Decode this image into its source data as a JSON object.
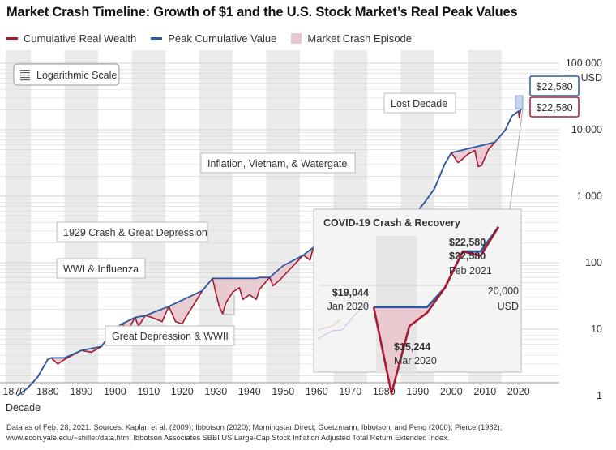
{
  "title": "Market Crash Timeline: Growth of $1 and the U.S. Stock Market’s Real Peak Values",
  "legend": {
    "cumulative": "Cumulative Real Wealth",
    "peak": "Peak Cumulative Value",
    "crash": "Market Crash Episode"
  },
  "colors": {
    "cumulative": "#a6192e",
    "peak": "#2c5aa0",
    "crash_fill": "#e8c8cf",
    "band": "#ebebeb",
    "grid": "#d4d4d4"
  },
  "scale_button": "Logarithmic Scale",
  "footnote": [
    "Data as of Feb. 28, 2021. Sources: Kaplan et al. (2009); Ibbotson (2020); Morningstar Direct; Goetzmann, Ibbotson, and Peng (2000); Pierce (1982);",
    "www.econ.yale.edu/~shiller/data.htm, Ibbotson Associates SBBI US Large-Cap Stock Inflation Adjusted Total Return Extended Index."
  ],
  "chart_data": {
    "type": "line",
    "title": "Market Crash Timeline: Growth of $1 and the U.S. Stock Market’s Real Peak Values",
    "xlabel": "Decade",
    "ylabel": "",
    "y_scale": "log",
    "xlim": [
      1870,
      2021
    ],
    "ylim": [
      0.8,
      100000
    ],
    "x_ticks": [
      "1870",
      "1880",
      "1890",
      "1900",
      "1910",
      "1920",
      "1930",
      "1940",
      "1950",
      "1960",
      "1970",
      "1980",
      "1990",
      "2000",
      "2010",
      "2020"
    ],
    "y_ticks": [
      {
        "value": 100000,
        "label": "100,000",
        "unit": "USD"
      },
      {
        "value": 10000,
        "label": "10,000"
      },
      {
        "value": 1000,
        "label": "1,000"
      },
      {
        "value": 100,
        "label": "100"
      },
      {
        "value": 10,
        "label": "10"
      },
      {
        "value": 1,
        "label": "1"
      }
    ],
    "grid": true,
    "legend_position": "top-left",
    "series": [
      {
        "name": "Cumulative Real Wealth",
        "x": [
          1871,
          1874,
          1877,
          1880,
          1881,
          1883,
          1885,
          1890,
          1893,
          1896,
          1899,
          1902,
          1904,
          1906,
          1907,
          1909,
          1911,
          1914,
          1916,
          1917,
          1918,
          1920,
          1921,
          1924,
          1926,
          1929,
          1930,
          1931,
          1932,
          1933,
          1935,
          1937,
          1938,
          1940,
          1942,
          1943,
          1946,
          1947,
          1949,
          1953,
          1956,
          1958,
          1959,
          1961,
          1962,
          1964,
          1966,
          1968,
          1970,
          1972,
          1974,
          1975,
          1977,
          1980,
          1982,
          1983,
          1985,
          1987,
          1988,
          1990,
          1992,
          1995,
          1998,
          2000,
          2002,
          2003,
          2005,
          2007,
          2008,
          2009,
          2011,
          2013,
          2016,
          2018,
          2020.0,
          2020.2,
          2020.5,
          2020.8,
          2021.1
        ],
        "y": [
          1,
          1.3,
          1.9,
          3.5,
          3.7,
          3.0,
          3.5,
          4.8,
          4.5,
          5.5,
          9,
          12,
          10,
          15,
          11,
          16,
          15,
          13,
          22,
          17,
          13,
          12,
          15,
          26,
          38,
          58,
          35,
          22,
          17,
          25,
          36,
          42,
          28,
          33,
          28,
          40,
          60,
          45,
          55,
          90,
          130,
          110,
          170,
          220,
          190,
          250,
          230,
          270,
          220,
          300,
          180,
          200,
          230,
          230,
          240,
          330,
          400,
          520,
          560,
          600,
          800,
          1300,
          3000,
          4500,
          3200,
          3500,
          4300,
          4900,
          2800,
          2900,
          5000,
          6500,
          9800,
          16000,
          19044,
          15244,
          18500,
          21500,
          22580
        ]
      },
      {
        "name": "Peak Cumulative Value",
        "x": [
          1871,
          1874,
          1877,
          1880,
          1881,
          1885,
          1890,
          1896,
          1899,
          1902,
          1906,
          1909,
          1916,
          1926,
          1929,
          1936,
          1942,
          1943,
          1946,
          1950,
          1956,
          1959,
          1961,
          1964,
          1966,
          1968,
          1985,
          1987,
          1990,
          1992,
          1995,
          1998,
          2000,
          2013,
          2016,
          2018,
          2020.0,
          2020.5,
          2020.8,
          2021.1
        ],
        "y": [
          1,
          1.3,
          1.9,
          3.5,
          3.7,
          3.7,
          4.8,
          5.5,
          9,
          12,
          15,
          16,
          22,
          38,
          58,
          58,
          58,
          60,
          60,
          90,
          130,
          170,
          220,
          250,
          270,
          270,
          400,
          520,
          600,
          800,
          1300,
          3000,
          4500,
          6500,
          9800,
          16000,
          19044,
          19044,
          21500,
          22580
        ]
      }
    ],
    "crash_episodes": [
      "WWI & Influenza",
      "1929 Crash & Great Depression",
      "Great Depression & WWII",
      "Inflation, Vietnam, & Watergate",
      "Lost Decade"
    ],
    "annotations": {
      "wwi": "WWI & Influenza",
      "crash1929": "1929 Crash & Great Depression",
      "wwii": "Great Depression & WWII",
      "inflation": "Inflation, Vietnam, & Watergate",
      "lost": "Lost Decade",
      "peak_value": "$22,580",
      "cum_value": "$22,580"
    },
    "inset": {
      "title": "COVID-19 Crash & Recovery",
      "y_ref": "20,000",
      "y_ref_unit": "USD",
      "points": [
        {
          "value": "$19,044",
          "date": "Jan 2020"
        },
        {
          "value": "$15,244",
          "date": "Mar 2020"
        },
        {
          "value": "$22,580",
          "date": "Feb 2021"
        }
      ],
      "peak_label": "$22,580",
      "cum_label": "$22,580",
      "cum_path": [
        19044,
        15244,
        18200,
        18800,
        19900,
        21500,
        21300,
        22580
      ],
      "peak_path": [
        19044,
        19044,
        19044,
        19044,
        19900,
        21500,
        21500,
        22580
      ]
    }
  }
}
